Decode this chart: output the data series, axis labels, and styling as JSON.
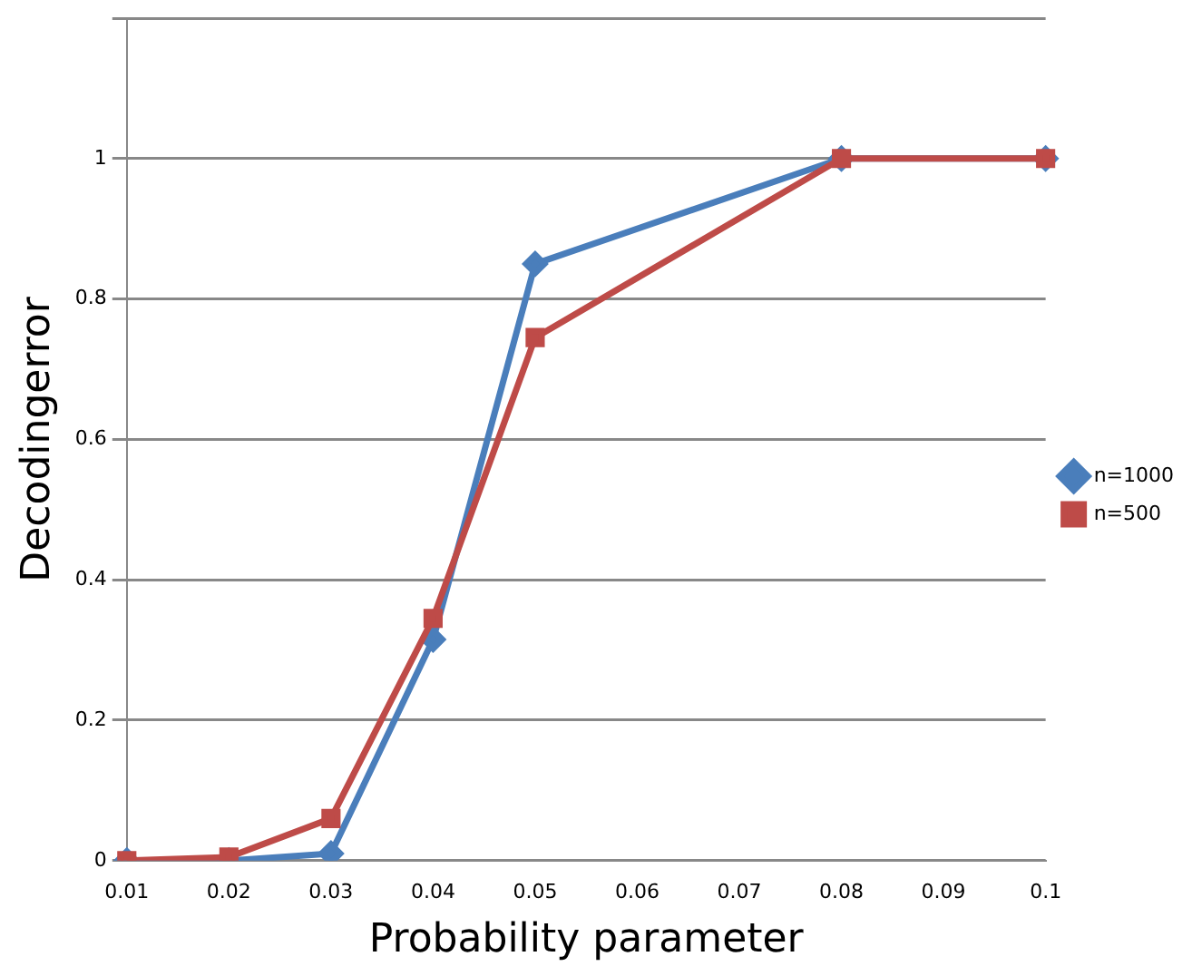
{
  "chart_data": {
    "type": "line",
    "xlabel": "Probability parameter",
    "ylabel": "Decodingerror",
    "categories": [
      "0.01",
      "0.02",
      "0.03",
      "0.04",
      "0.05",
      "0.06",
      "0.07",
      "0.08",
      "0.09",
      "0.1"
    ],
    "series": [
      {
        "name": "n=1000",
        "color": "#4a7ebb",
        "marker": "diamond",
        "values": [
          0,
          0,
          0.01,
          0.315,
          0.85,
          null,
          null,
          1,
          null,
          1
        ]
      },
      {
        "name": "n=500",
        "color": "#be4b48",
        "marker": "square",
        "values": [
          0,
          0.005,
          0.06,
          0.345,
          0.745,
          null,
          null,
          1,
          null,
          1
        ]
      }
    ],
    "ylim": [
      0,
      1.2
    ],
    "yticks": [
      0,
      0.2,
      0.4,
      0.6,
      0.8,
      1,
      {
        "value": 1.2,
        "label": null
      }
    ],
    "grid": "y",
    "legend": "right",
    "line_style": "solid"
  }
}
